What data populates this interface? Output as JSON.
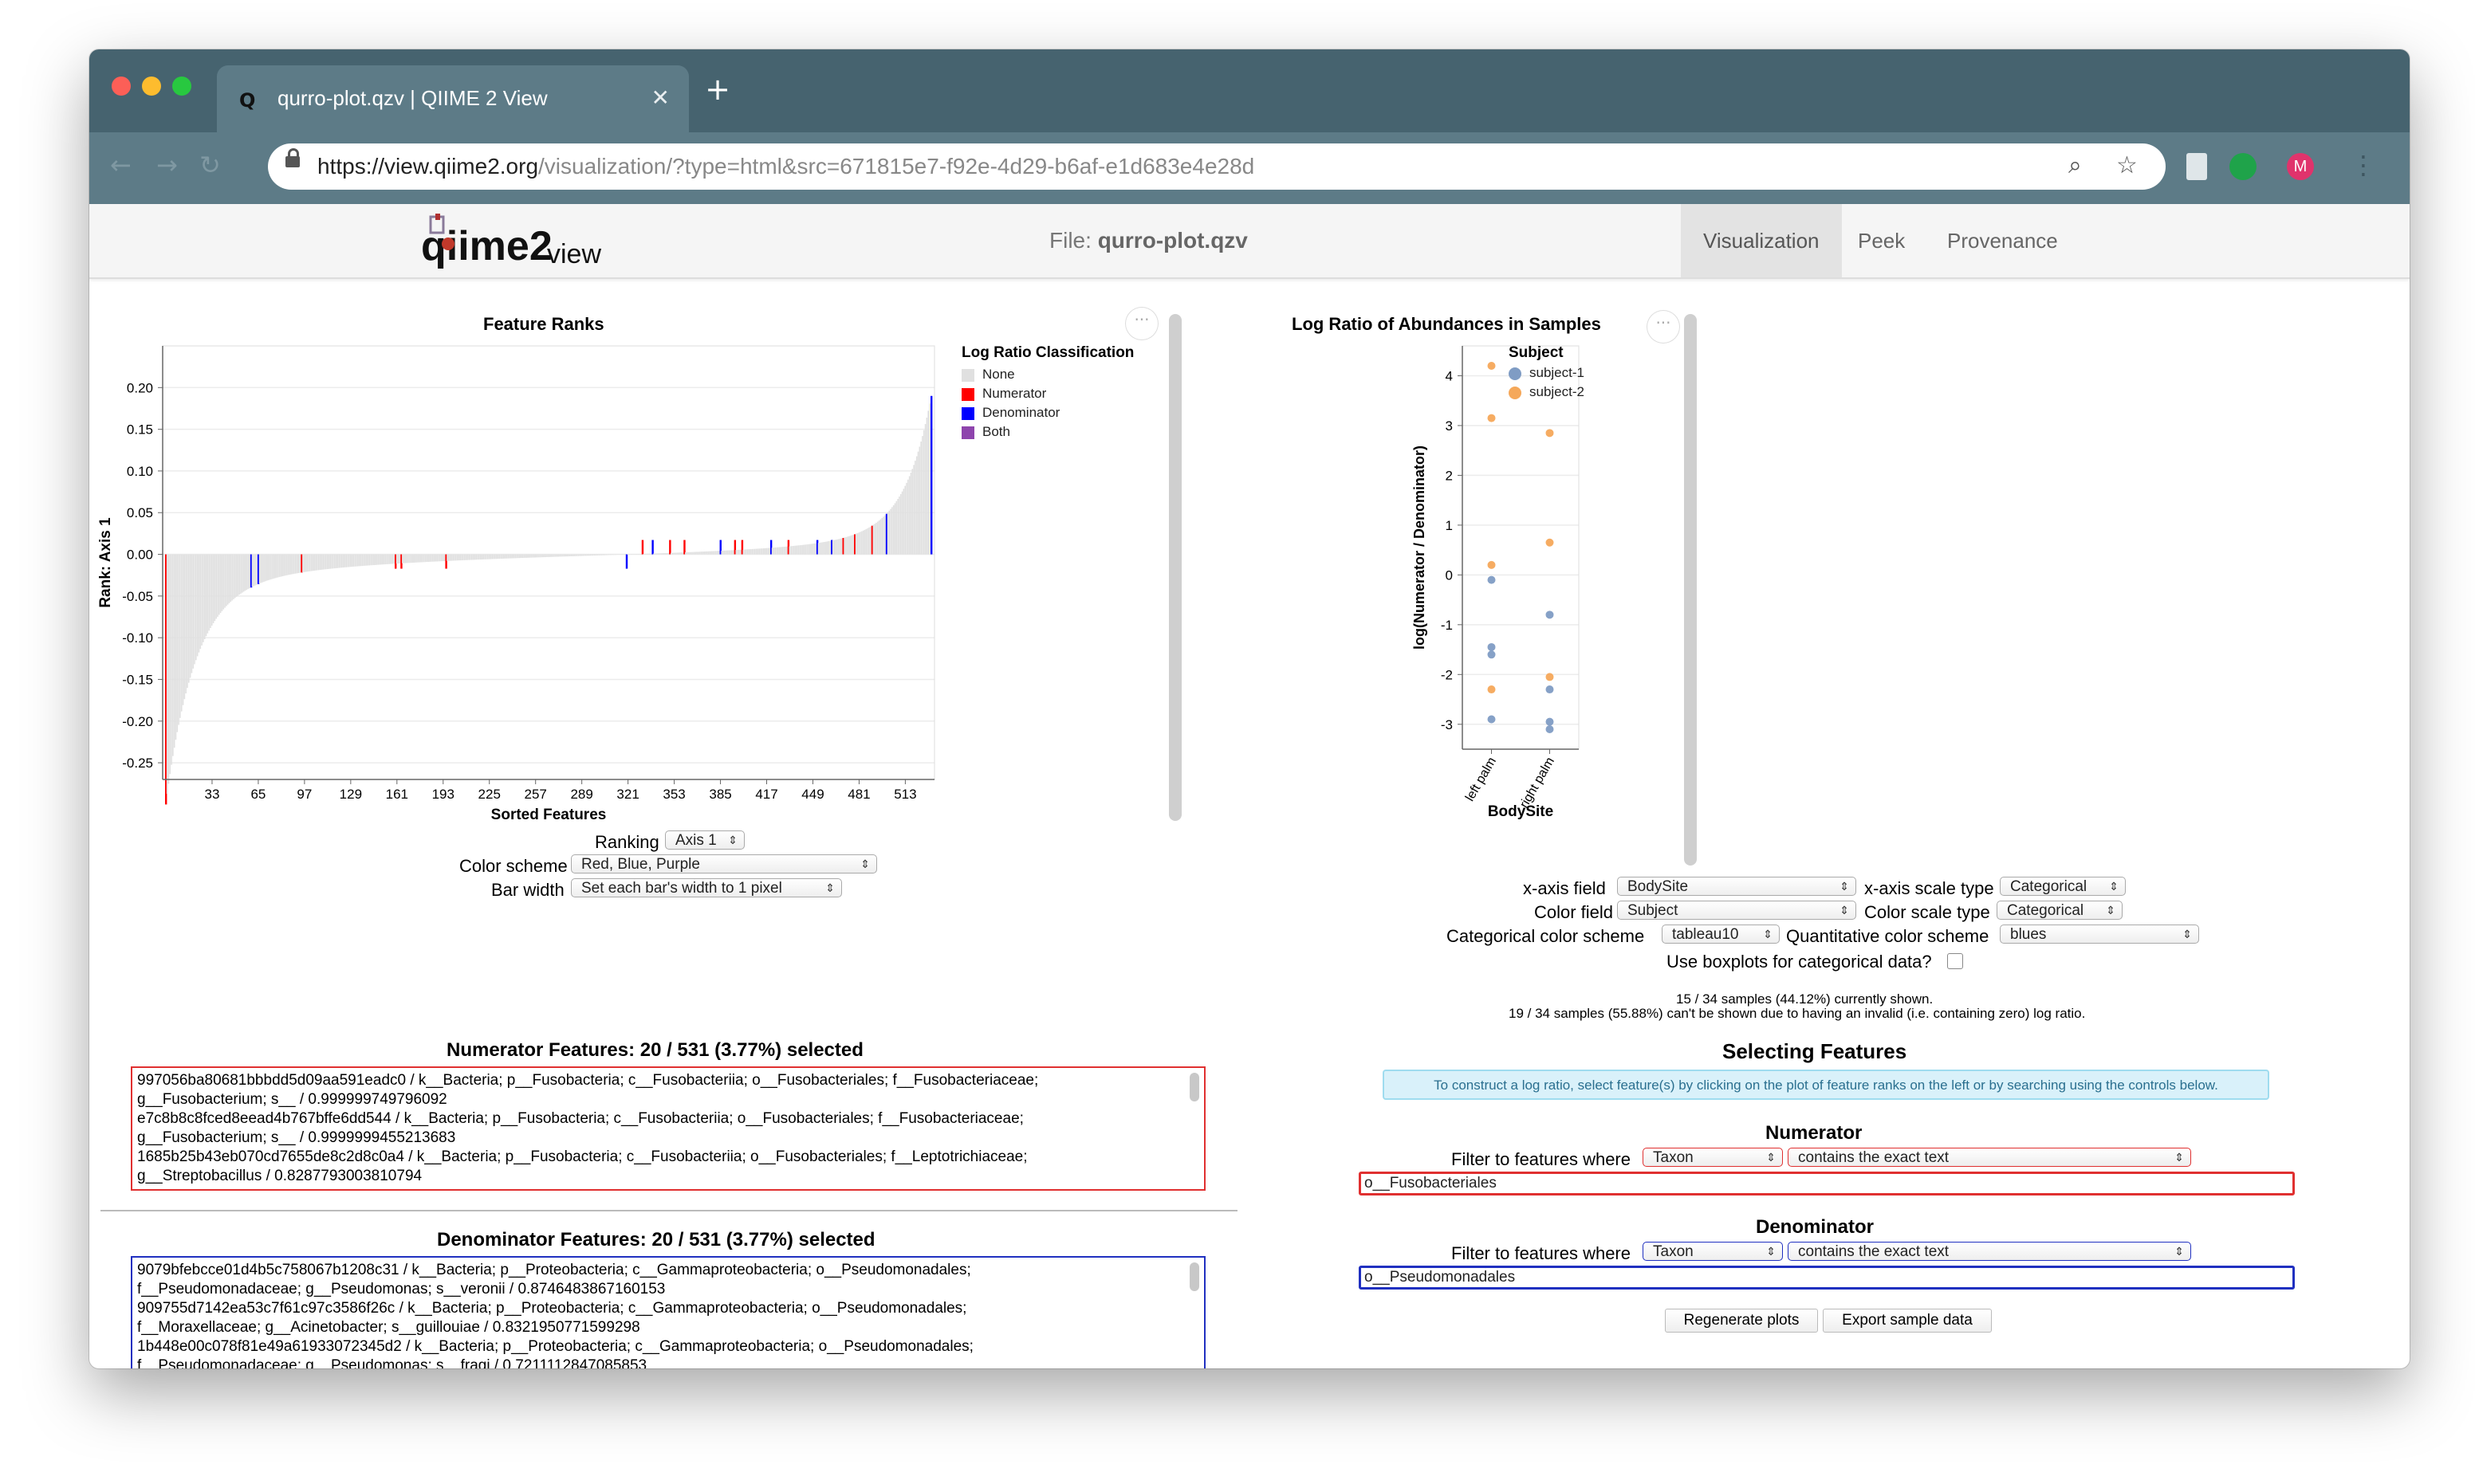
{
  "browser": {
    "tab_title": "qurro-plot.qzv | QIIME 2 View",
    "tab_favicon": "Q",
    "url_host": "https://view.qiime2.org",
    "url_rest": "/visualization/?type=html&src=671815e7-f92e-4d29-b6af-e1d683e4e28d",
    "profile_initial": "M"
  },
  "qiime": {
    "logo_main": "qiime2",
    "logo_sub": "view",
    "file_prefix": "File:",
    "file_name": "qurro-plot.qzv",
    "nav": [
      "Visualization",
      "Peek",
      "Provenance"
    ]
  },
  "rank_plot": {
    "title": "Feature Ranks",
    "ylabel": "Rank: Axis 1",
    "xlabel": "Sorted Features",
    "legend_title": "Log Ratio Classification",
    "legend": [
      {
        "label": "None",
        "color": "#e0e0e0"
      },
      {
        "label": "Numerator",
        "color": "#ff0000"
      },
      {
        "label": "Denominator",
        "color": "#0000ff"
      },
      {
        "label": "Both",
        "color": "#8e44ad"
      }
    ],
    "controls": {
      "ranking_label": "Ranking",
      "ranking_value": "Axis 1",
      "color_label": "Color scheme",
      "color_value": "Red, Blue, Purple",
      "barwidth_label": "Bar width",
      "barwidth_value": "Set each bar's width to 1 pixel"
    }
  },
  "sample_plot": {
    "title": "Log Ratio of Abundances in Samples",
    "ylabel": "log(Numerator / Denominator)",
    "xlabel": "BodySite",
    "legend_title": "Subject",
    "legend": [
      {
        "label": "subject-1",
        "color": "#7f9cc4"
      },
      {
        "label": "subject-2",
        "color": "#f5a85a"
      }
    ],
    "controls": {
      "xfield_label": "x-axis field",
      "xfield_value": "BodySite",
      "xscale_label": "x-axis scale type",
      "xscale_value": "Categorical",
      "colorfield_label": "Color field",
      "colorfield_value": "Subject",
      "colorscale_label": "Color scale type",
      "colorscale_value": "Categorical",
      "catscheme_label": "Categorical color scheme",
      "catscheme_value": "tableau10",
      "quantscheme_label": "Quantitative color scheme",
      "quantscheme_value": "blues",
      "boxplot_label": "Use boxplots for categorical data?"
    },
    "status_line1": "15 / 34 samples (44.12%) currently shown.",
    "status_line2": "19 / 34 samples (55.88%) can't be shown due to having an invalid (i.e. containing zero) log ratio."
  },
  "chart_data": [
    {
      "type": "bar",
      "title": "Feature Ranks",
      "xlabel": "Sorted Features",
      "ylabel": "Rank: Axis 1",
      "ylim": [
        -0.27,
        0.25
      ],
      "x_ticks": [
        33,
        65,
        97,
        129,
        161,
        193,
        225,
        257,
        289,
        321,
        353,
        385,
        417,
        449,
        481,
        513
      ],
      "y_ticks": [
        0.2,
        0.15,
        0.1,
        0.05,
        0.0,
        -0.05,
        -0.1,
        -0.15,
        -0.2,
        -0.25
      ],
      "feature_count": 531,
      "rank_min": -0.26,
      "rank_max": 0.16,
      "highlighted": [
        {
          "feature": 1,
          "class": "Numerator"
        },
        {
          "feature": 60,
          "class": "Denominator"
        },
        {
          "feature": 65,
          "class": "Denominator"
        },
        {
          "feature": 95,
          "class": "Numerator"
        },
        {
          "feature": 160,
          "class": "Numerator"
        },
        {
          "feature": 164,
          "class": "Numerator"
        },
        {
          "feature": 195,
          "class": "Numerator"
        },
        {
          "feature": 320,
          "class": "Denominator"
        },
        {
          "feature": 331,
          "class": "Numerator"
        },
        {
          "feature": 338,
          "class": "Denominator"
        },
        {
          "feature": 350,
          "class": "Numerator"
        },
        {
          "feature": 360,
          "class": "Numerator"
        },
        {
          "feature": 385,
          "class": "Denominator"
        },
        {
          "feature": 395,
          "class": "Numerator"
        },
        {
          "feature": 400,
          "class": "Numerator"
        },
        {
          "feature": 420,
          "class": "Denominator"
        },
        {
          "feature": 432,
          "class": "Numerator"
        },
        {
          "feature": 452,
          "class": "Denominator"
        },
        {
          "feature": 462,
          "class": "Denominator"
        },
        {
          "feature": 470,
          "class": "Numerator"
        },
        {
          "feature": 478,
          "class": "Numerator"
        },
        {
          "feature": 490,
          "class": "Numerator"
        },
        {
          "feature": 500,
          "class": "Denominator"
        },
        {
          "feature": 531,
          "class": "Denominator"
        }
      ]
    },
    {
      "type": "scatter",
      "title": "Log Ratio of Abundances in Samples",
      "xlabel": "BodySite",
      "ylabel": "log(Numerator / Denominator)",
      "categories": [
        "left palm",
        "right palm"
      ],
      "y_ticks": [
        4,
        3,
        2,
        1,
        0,
        -1,
        -2,
        -3
      ],
      "ylim": [
        -3.5,
        4.6
      ],
      "series": [
        {
          "name": "subject-1",
          "color": "#7f9cc4",
          "points": [
            [
              "left palm",
              -0.1
            ],
            [
              "left palm",
              -1.45
            ],
            [
              "left palm",
              -1.6
            ],
            [
              "left palm",
              -2.9
            ],
            [
              "right palm",
              -0.8
            ],
            [
              "right palm",
              -2.3
            ],
            [
              "right palm",
              -2.95
            ],
            [
              "right palm",
              -3.1
            ]
          ]
        },
        {
          "name": "subject-2",
          "color": "#f5a85a",
          "points": [
            [
              "left palm",
              4.2
            ],
            [
              "left palm",
              3.15
            ],
            [
              "left palm",
              0.2
            ],
            [
              "left palm",
              -2.3
            ],
            [
              "right palm",
              2.85
            ],
            [
              "right palm",
              0.65
            ],
            [
              "right palm",
              -2.05
            ]
          ]
        }
      ]
    }
  ],
  "numerator_features": {
    "heading": "Numerator Features: 20 / 531 (3.77%) selected",
    "lines": [
      "997056ba80681bbbdd5d09aa591eadc0 / k__Bacteria; p__Fusobacteria; c__Fusobacteriia; o__Fusobacteriales; f__Fusobacteriaceae;",
      "g__Fusobacterium; s__ / 0.999999749796092",
      "e7c8b8c8fced8eead4b767bffe6dd544 / k__Bacteria; p__Fusobacteria; c__Fusobacteriia; o__Fusobacteriales; f__Fusobacteriaceae;",
      "g__Fusobacterium; s__ / 0.9999999455213683",
      "1685b25b43eb070cd7655de8c2d8c0a4 / k__Bacteria; p__Fusobacteria; c__Fusobacteriia; o__Fusobacteriales; f__Leptotrichiaceae;",
      "g__Streptobacillus / 0.8287793003810794"
    ]
  },
  "denominator_features": {
    "heading": "Denominator Features: 20 / 531 (3.77%) selected",
    "lines": [
      "9079bfebcce01d4b5c758067b1208c31 / k__Bacteria; p__Proteobacteria; c__Gammaproteobacteria; o__Pseudomonadales;",
      "f__Pseudomonadaceae; g__Pseudomonas; s__veronii / 0.8746483867160153",
      "909755d7142ea53c7f61c97c3586f26c / k__Bacteria; p__Proteobacteria; c__Gammaproteobacteria; o__Pseudomonadales;",
      "f__Moraxellaceae; g__Acinetobacter; s__guillouiae / 0.8321950771599298",
      "1b448e00c078f81e49a61933072345d2 / k__Bacteria; p__Proteobacteria; c__Gammaproteobacteria; o__Pseudomonadales;",
      "f__Pseudomonadaceae; g__Pseudomonas; s__fragi / 0.7211112847085853"
    ]
  },
  "selecting": {
    "title": "Selecting Features",
    "hint": "To construct a log ratio, select feature(s) by clicking on the plot of feature ranks on the left or by searching using the controls below.",
    "numerator_title": "Numerator",
    "denominator_title": "Denominator",
    "filter_label": "Filter to features where",
    "num_field": "Taxon",
    "num_op": "contains the exact text",
    "num_text": "o__Fusobacteriales",
    "den_field": "Taxon",
    "den_op": "contains the exact text",
    "den_text": "o__Pseudomonadales",
    "regen_button": "Regenerate plots",
    "export_button": "Export sample data"
  }
}
